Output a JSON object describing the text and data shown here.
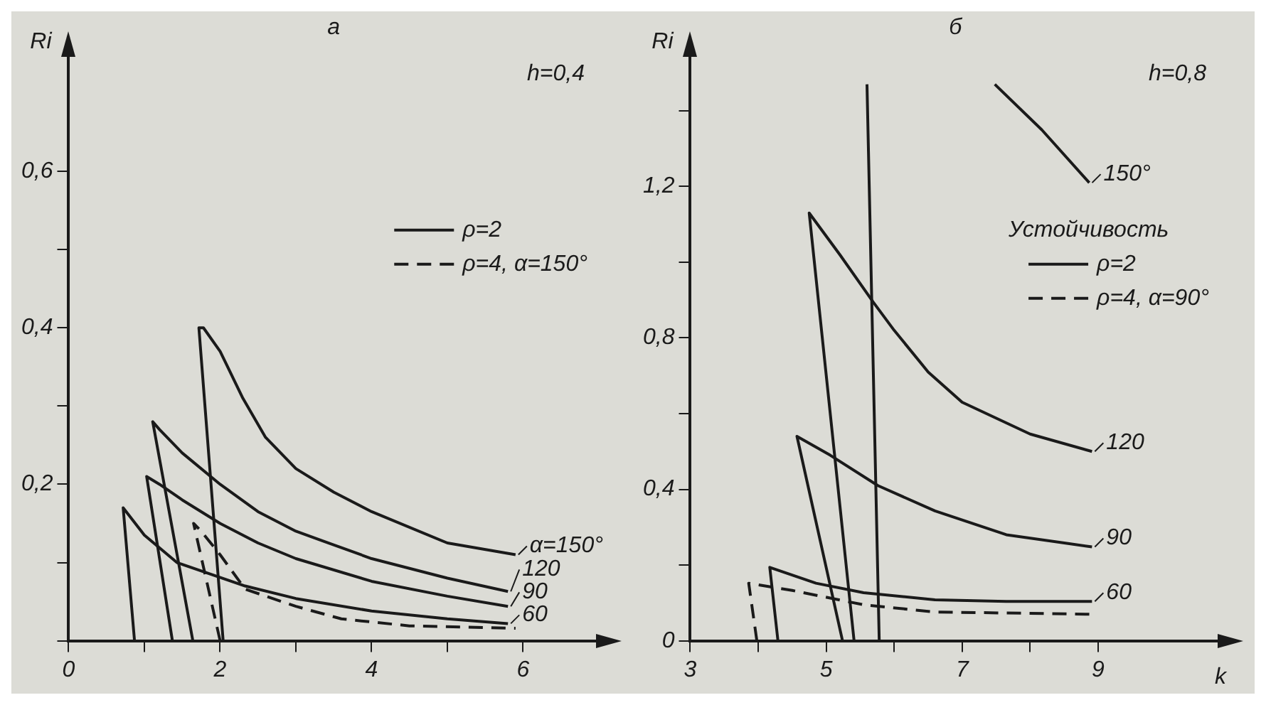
{
  "chart_data": [
    {
      "type": "line",
      "title": "а",
      "ylabel": "Ri",
      "xlim": [
        0,
        7
      ],
      "ylim": [
        0,
        0.75
      ],
      "xticks": [
        {
          "value": 0,
          "label": "0"
        },
        {
          "value": 1,
          "label": null
        },
        2,
        {
          "value": 3,
          "label": null
        },
        4,
        {
          "value": 5,
          "label": null
        },
        6
      ],
      "yticks": [
        {
          "value": 0,
          "label": null
        },
        {
          "value": 0.1,
          "label": null
        },
        {
          "value": 0.2,
          "label": "0,2"
        },
        {
          "value": 0.3,
          "label": null
        },
        {
          "value": 0.4,
          "label": "0,4"
        },
        {
          "value": 0.5,
          "label": null
        },
        {
          "value": 0.6,
          "label": "0,6"
        }
      ],
      "grid": false,
      "marker": "none",
      "legend": "right",
      "annotations": [
        "h=0,4",
        "ρ=2"
      ],
      "series": [
        {
          "name": "α=150°",
          "color": "#1a1a1a",
          "line_style": "solid",
          "x": [
            2.04,
            1.72,
            1.78,
            2.0,
            2.3,
            2.6,
            3.0,
            3.5,
            4.0,
            5.0,
            5.9
          ],
          "values": [
            0,
            0.4,
            0.4,
            0.37,
            0.31,
            0.26,
            0.22,
            0.19,
            0.165,
            0.125,
            0.11
          ]
        },
        {
          "name": "120",
          "color": "#1a1a1a",
          "line_style": "solid",
          "x": [
            1.64,
            1.11,
            1.2,
            1.5,
            2.0,
            2.5,
            3.0,
            4.0,
            5.0,
            5.8
          ],
          "values": [
            0,
            0.28,
            0.27,
            0.24,
            0.2,
            0.165,
            0.14,
            0.105,
            0.08,
            0.063
          ]
        },
        {
          "name": "90",
          "color": "#1a1a1a",
          "line_style": "solid",
          "x": [
            1.37,
            1.03,
            1.2,
            1.5,
            2.0,
            2.5,
            3.0,
            4.0,
            5.0,
            5.8
          ],
          "values": [
            0,
            0.21,
            0.2,
            0.18,
            0.15,
            0.125,
            0.105,
            0.076,
            0.057,
            0.044
          ]
        },
        {
          "name": "60",
          "color": "#1a1a1a",
          "line_style": "solid",
          "x": [
            0.87,
            0.72,
            1.0,
            1.43,
            2.33,
            3.0,
            4.0,
            5.0,
            5.8
          ],
          "values": [
            0,
            0.17,
            0.135,
            0.1,
            0.07,
            0.054,
            0.038,
            0.028,
            0.022
          ]
        },
        {
          "name": "ρ=4, α=150°",
          "color": "#1a1a1a",
          "line_style": "dashed",
          "x": [
            2.0,
            1.65,
            1.75,
            2.0,
            2.33,
            3.0,
            3.6,
            4.5,
            5.9
          ],
          "values": [
            0,
            0.15,
            0.14,
            0.11,
            0.066,
            0.044,
            0.028,
            0.019,
            0.016
          ]
        }
      ]
    },
    {
      "type": "line",
      "title": "б",
      "ylabel": "Ri",
      "xlabel": "k",
      "xlim": [
        3,
        10.8
      ],
      "ylim": [
        0,
        1.55
      ],
      "xticks": [
        3,
        {
          "value": 4,
          "label": null
        },
        5,
        {
          "value": 6,
          "label": null
        },
        7,
        {
          "value": 8,
          "label": null
        },
        9
      ],
      "yticks": [
        {
          "value": 0,
          "label": "0"
        },
        {
          "value": 0.2,
          "label": null
        },
        {
          "value": 0.4,
          "label": "0,4"
        },
        {
          "value": 0.6,
          "label": null
        },
        {
          "value": 0.8,
          "label": "0,8"
        },
        {
          "value": 1.0,
          "label": null
        },
        {
          "value": 1.2,
          "label": "1,2"
        },
        {
          "value": 1.4,
          "label": null
        }
      ],
      "grid": false,
      "marker": "none",
      "legend": "right",
      "legend_title": "Устойчивость",
      "annotations": [
        "h=0,8",
        "ρ=2"
      ],
      "series": [
        {
          "name": "150°",
          "color": "#1a1a1a",
          "line_style": "solid",
          "x": [
            5.78,
            5.6,
            5.7,
            7.48,
            8.17,
            8.87
          ],
          "values": [
            0,
            1.47,
            null,
            1.47,
            1.35,
            1.21
          ]
        },
        {
          "name": "120",
          "color": "#1a1a1a",
          "line_style": "solid",
          "x": [
            5.41,
            4.75,
            5.2,
            5.69,
            6.0,
            6.5,
            7.0,
            8.0,
            8.91
          ],
          "values": [
            0,
            1.13,
            1.02,
            0.895,
            0.82,
            0.71,
            0.63,
            0.546,
            0.5
          ]
        },
        {
          "name": "90",
          "color": "#1a1a1a",
          "line_style": "solid",
          "x": [
            5.24,
            4.57,
            5.06,
            5.76,
            6.6,
            7.65,
            8.91
          ],
          "values": [
            0,
            0.54,
            0.49,
            0.41,
            0.343,
            0.28,
            0.248
          ]
        },
        {
          "name": "60",
          "color": "#1a1a1a",
          "line_style": "solid",
          "x": [
            4.29,
            4.17,
            4.85,
            5.55,
            6.6,
            7.65,
            8.91
          ],
          "values": [
            0,
            0.194,
            0.152,
            0.127,
            0.108,
            0.104,
            0.104
          ]
        },
        {
          "name": "ρ=4, α=90°",
          "color": "#1a1a1a",
          "line_style": "dashed",
          "x": [
            3.98,
            3.86,
            4.5,
            5.55,
            6.6,
            8.91
          ],
          "values": [
            0,
            0.152,
            0.133,
            0.095,
            0.076,
            0.07
          ]
        }
      ]
    }
  ]
}
